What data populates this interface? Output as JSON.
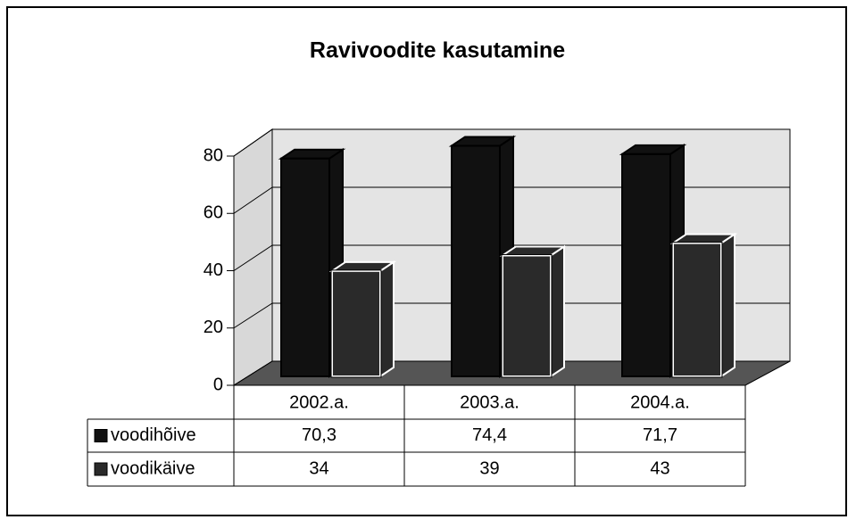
{
  "chart_data": {
    "type": "bar3d",
    "title": "Ravivoodite kasutamine",
    "categories": [
      "2002.a.",
      "2003.a.",
      "2004.a."
    ],
    "series": [
      {
        "name": "voodihõive",
        "color": "#111111",
        "values": [
          70.3,
          74.4,
          71.7
        ],
        "value_labels": [
          "70,3",
          "74,4",
          "71,7"
        ]
      },
      {
        "name": "voodikäive",
        "color": "#2a2a2a",
        "values": [
          34,
          39,
          43
        ]
      }
    ],
    "ylim": [
      0,
      80
    ],
    "yticks": [
      0,
      20,
      40,
      60,
      80
    ],
    "grid": true
  }
}
